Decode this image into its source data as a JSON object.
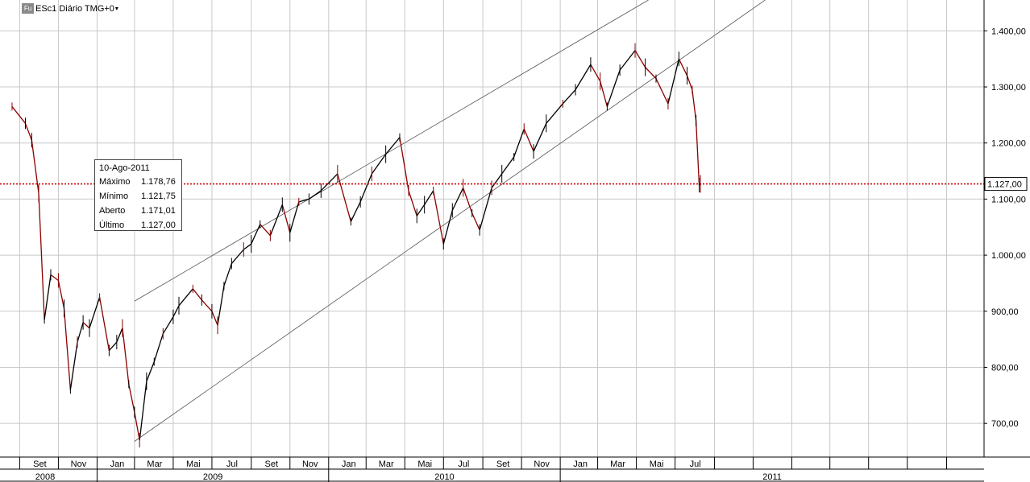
{
  "header": {
    "badge": "Fu",
    "title": "ESc1 Diário TMG+0",
    "caret": "▾"
  },
  "tooltip": {
    "date": "10-Ago-2011",
    "rows": [
      {
        "label": "Máximo",
        "value": "1.178,76"
      },
      {
        "label": "Mínimo",
        "value": "1.121,75"
      },
      {
        "label": "Aberto",
        "value": "1.171,01"
      },
      {
        "label": "Último",
        "value": "1.127,00"
      }
    ]
  },
  "colors": {
    "up": "#000000",
    "down": "#8b0000",
    "current_line": "#cc0000",
    "grid": "#c8c8c8",
    "trendline": "#555555"
  },
  "chart_data": {
    "type": "line",
    "y_axis": {
      "ylim": [
        640,
        1455
      ],
      "ticks": [
        "700,00",
        "800,00",
        "900,00",
        "1.000,00",
        "1.100,00",
        "1.200,00",
        "1.300,00",
        "1.400,00"
      ],
      "current_value_label": "1.127,00",
      "current_value": 1127
    },
    "x_axis": {
      "months": [
        "Set",
        "Nov",
        "Jan",
        "Mar",
        "Mai",
        "Jul",
        "Set",
        "Nov",
        "Jan",
        "Mar",
        "Mai",
        "Jul",
        "Set",
        "Nov",
        "Jan",
        "Mar",
        "Mai",
        "Jul"
      ],
      "years": [
        "2008",
        "2009",
        "2010",
        "2011"
      ]
    },
    "grid": true,
    "series": [
      {
        "values": [
          {
            "x": "2008-08-20",
            "y": 1265
          },
          {
            "x": "2008-09-10",
            "y": 1235
          },
          {
            "x": "2008-09-20",
            "y": 1205
          },
          {
            "x": "2008-10-01",
            "y": 1110
          },
          {
            "x": "2008-10-10",
            "y": 885
          },
          {
            "x": "2008-10-20",
            "y": 965
          },
          {
            "x": "2008-11-01",
            "y": 955
          },
          {
            "x": "2008-11-10",
            "y": 905
          },
          {
            "x": "2008-11-20",
            "y": 760
          },
          {
            "x": "2008-12-01",
            "y": 845
          },
          {
            "x": "2008-12-10",
            "y": 880
          },
          {
            "x": "2008-12-20",
            "y": 870
          },
          {
            "x": "2009-01-05",
            "y": 925
          },
          {
            "x": "2009-01-20",
            "y": 830
          },
          {
            "x": "2009-02-01",
            "y": 845
          },
          {
            "x": "2009-02-10",
            "y": 870
          },
          {
            "x": "2009-02-20",
            "y": 770
          },
          {
            "x": "2009-03-01",
            "y": 720
          },
          {
            "x": "2009-03-09",
            "y": 670
          },
          {
            "x": "2009-03-20",
            "y": 775
          },
          {
            "x": "2009-04-01",
            "y": 810
          },
          {
            "x": "2009-04-15",
            "y": 860
          },
          {
            "x": "2009-05-01",
            "y": 890
          },
          {
            "x": "2009-05-10",
            "y": 910
          },
          {
            "x": "2009-06-01",
            "y": 940
          },
          {
            "x": "2009-06-15",
            "y": 920
          },
          {
            "x": "2009-07-01",
            "y": 900
          },
          {
            "x": "2009-07-10",
            "y": 875
          },
          {
            "x": "2009-07-20",
            "y": 945
          },
          {
            "x": "2009-08-01",
            "y": 985
          },
          {
            "x": "2009-08-20",
            "y": 1010
          },
          {
            "x": "2009-09-01",
            "y": 1020
          },
          {
            "x": "2009-09-15",
            "y": 1055
          },
          {
            "x": "2009-10-01",
            "y": 1035
          },
          {
            "x": "2009-10-20",
            "y": 1090
          },
          {
            "x": "2009-11-01",
            "y": 1040
          },
          {
            "x": "2009-11-15",
            "y": 1095
          },
          {
            "x": "2009-12-01",
            "y": 1100
          },
          {
            "x": "2009-12-20",
            "y": 1115
          },
          {
            "x": "2010-01-15",
            "y": 1145
          },
          {
            "x": "2010-02-05",
            "y": 1060
          },
          {
            "x": "2010-02-20",
            "y": 1095
          },
          {
            "x": "2010-03-10",
            "y": 1145
          },
          {
            "x": "2010-04-01",
            "y": 1180
          },
          {
            "x": "2010-04-23",
            "y": 1210
          },
          {
            "x": "2010-05-07",
            "y": 1115
          },
          {
            "x": "2010-05-20",
            "y": 1070
          },
          {
            "x": "2010-06-01",
            "y": 1090
          },
          {
            "x": "2010-06-15",
            "y": 1115
          },
          {
            "x": "2010-07-01",
            "y": 1020
          },
          {
            "x": "2010-07-15",
            "y": 1080
          },
          {
            "x": "2010-08-01",
            "y": 1120
          },
          {
            "x": "2010-08-15",
            "y": 1075
          },
          {
            "x": "2010-08-27",
            "y": 1045
          },
          {
            "x": "2010-09-15",
            "y": 1120
          },
          {
            "x": "2010-10-01",
            "y": 1145
          },
          {
            "x": "2010-10-20",
            "y": 1175
          },
          {
            "x": "2010-11-05",
            "y": 1225
          },
          {
            "x": "2010-11-20",
            "y": 1185
          },
          {
            "x": "2010-12-10",
            "y": 1235
          },
          {
            "x": "2011-01-05",
            "y": 1270
          },
          {
            "x": "2011-01-25",
            "y": 1295
          },
          {
            "x": "2011-02-18",
            "y": 1340
          },
          {
            "x": "2011-03-05",
            "y": 1310
          },
          {
            "x": "2011-03-16",
            "y": 1265
          },
          {
            "x": "2011-04-05",
            "y": 1330
          },
          {
            "x": "2011-04-29",
            "y": 1365
          },
          {
            "x": "2011-05-15",
            "y": 1335
          },
          {
            "x": "2011-06-01",
            "y": 1315
          },
          {
            "x": "2011-06-20",
            "y": 1270
          },
          {
            "x": "2011-07-07",
            "y": 1350
          },
          {
            "x": "2011-07-20",
            "y": 1320
          },
          {
            "x": "2011-07-28",
            "y": 1295
          },
          {
            "x": "2011-08-03",
            "y": 1240
          },
          {
            "x": "2011-08-08",
            "y": 1125
          },
          {
            "x": "2011-08-10",
            "y": 1127
          }
        ]
      }
    ],
    "trendlines": [
      {
        "points": [
          {
            "x": "2009-03-01",
            "y": 918
          },
          {
            "x": "2011-05-20",
            "y": 1455
          }
        ]
      },
      {
        "points": [
          {
            "x": "2009-03-01",
            "y": 668
          },
          {
            "x": "2011-11-20",
            "y": 1455
          }
        ]
      }
    ]
  }
}
